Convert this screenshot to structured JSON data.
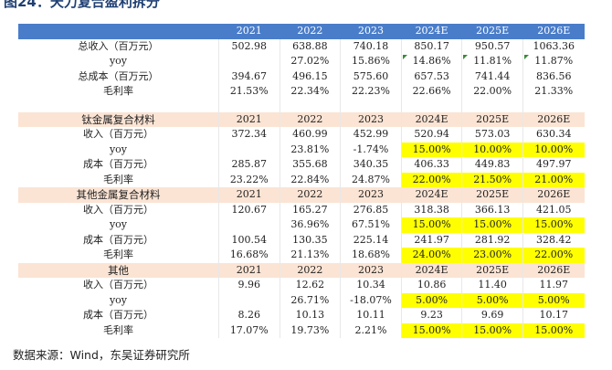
{
  "figure": {
    "title": "图24：天力复合盈利拆分"
  },
  "years": [
    "2021",
    "2022",
    "2023",
    "2024E",
    "2025E",
    "2026E"
  ],
  "summary": {
    "rev_label": "总收入（百万元）",
    "rev": [
      "502.98",
      "638.88",
      "740.18",
      "850.17",
      "950.57",
      "1063.36"
    ],
    "yoy_label": "yoy",
    "yoy": [
      "",
      "27.02%",
      "15.86%",
      "14.86%",
      "11.81%",
      "11.87%"
    ],
    "cost_label": "总成本（百万元）",
    "cost": [
      "394.67",
      "496.15",
      "575.60",
      "657.53",
      "741.44",
      "836.56"
    ],
    "gm_label": "毛利率",
    "gm": [
      "21.53%",
      "22.34%",
      "22.23%",
      "22.66%",
      "22.00%",
      "21.33%"
    ]
  },
  "sections": [
    {
      "name": "钛金属复合材料",
      "rev_label": "收入（百万元）",
      "rev": [
        "372.34",
        "460.99",
        "452.99",
        "520.94",
        "573.03",
        "630.34"
      ],
      "yoy_label": "yoy",
      "yoy": [
        "",
        "23.81%",
        "-1.74%",
        "15.00%",
        "10.00%",
        "10.00%"
      ],
      "cost_label": "成本（百万元）",
      "cost": [
        "285.87",
        "355.68",
        "340.35",
        "406.33",
        "449.83",
        "497.97"
      ],
      "gm_label": "毛利率",
      "gm": [
        "23.22%",
        "22.84%",
        "24.87%",
        "22.00%",
        "21.50%",
        "21.00%"
      ]
    },
    {
      "name": "其他金属复合材料",
      "rev_label": "收入（百万元）",
      "rev": [
        "120.67",
        "165.27",
        "276.85",
        "318.38",
        "366.13",
        "421.05"
      ],
      "yoy_label": "yoy",
      "yoy": [
        "",
        "36.96%",
        "67.51%",
        "15.00%",
        "15.00%",
        "15.00%"
      ],
      "cost_label": "成本（百万元）",
      "cost": [
        "100.54",
        "130.35",
        "225.14",
        "241.97",
        "281.92",
        "328.42"
      ],
      "gm_label": "毛利率",
      "gm": [
        "16.68%",
        "21.13%",
        "18.68%",
        "24.00%",
        "23.00%",
        "22.00%"
      ]
    },
    {
      "name": "其他",
      "rev_label": "收入（百万元）",
      "rev": [
        "9.96",
        "12.62",
        "10.34",
        "10.86",
        "11.40",
        "11.97"
      ],
      "yoy_label": "yoy",
      "yoy": [
        "",
        "26.71%",
        "-18.07%",
        "5.00%",
        "5.00%",
        "5.00%"
      ],
      "cost_label": "成本（百万元）",
      "cost": [
        "8.26",
        "10.13",
        "10.11",
        "9.23",
        "9.69",
        "10.17"
      ],
      "gm_label": "毛利率",
      "gm": [
        "17.07%",
        "19.73%",
        "2.21%",
        "15.00%",
        "15.00%",
        "15.00%"
      ]
    }
  ],
  "highlight_color": "#ffff00",
  "header_color": "#4a7dc9",
  "section_color": "#fbe4d4",
  "source": "数据来源：Wind，东吴证券研究所"
}
